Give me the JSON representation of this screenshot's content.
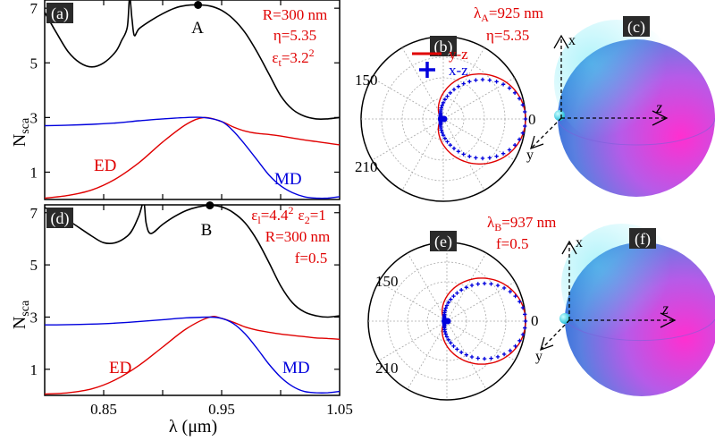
{
  "chart_data": [
    {
      "panel": "a",
      "type": "line",
      "ylabel": "N",
      "ylabel_sub": "sca",
      "xlim": [
        0.8,
        1.05
      ],
      "ylim": [
        0,
        7.3
      ],
      "yticks": [
        "1",
        "3",
        "5",
        "7"
      ],
      "annotations": {
        "params": [
          "R=300 nm",
          "η=5.35"
        ],
        "eps_base": "ε",
        "eps_sub": "t",
        "eps_value": "=3.2",
        "eps_sup": "2",
        "ed": "ED",
        "md": "MD",
        "point": "A"
      },
      "point": {
        "x": 0.93,
        "y": 7.12
      },
      "series": [
        {
          "key": "total",
          "color": "#000000",
          "x": [
            0.8,
            0.81,
            0.82,
            0.83,
            0.84,
            0.85,
            0.86,
            0.865,
            0.87,
            0.872,
            0.874,
            0.876,
            0.88,
            0.89,
            0.9,
            0.91,
            0.92,
            0.93,
            0.94,
            0.95,
            0.96,
            0.97,
            0.98,
            0.99,
            1.0,
            1.01,
            1.02,
            1.03,
            1.04,
            1.05
          ],
          "y": [
            6.85,
            6.1,
            5.4,
            5.0,
            4.85,
            5.0,
            5.4,
            5.8,
            6.3,
            7.4,
            6.6,
            6.0,
            6.25,
            6.55,
            6.8,
            7.0,
            7.1,
            7.12,
            7.08,
            6.92,
            6.6,
            6.1,
            5.4,
            4.6,
            3.8,
            3.3,
            3.05,
            2.95,
            2.95,
            3.0
          ]
        },
        {
          "key": "ed",
          "color": "#e00000",
          "x": [
            0.8,
            0.82,
            0.84,
            0.86,
            0.88,
            0.9,
            0.92,
            0.935,
            0.95,
            0.96,
            0.97,
            0.98,
            0.99,
            1.0,
            1.01,
            1.02,
            1.03,
            1.04,
            1.05
          ],
          "y": [
            0.05,
            0.15,
            0.35,
            0.75,
            1.35,
            2.1,
            2.75,
            3.0,
            2.85,
            2.65,
            2.5,
            2.42,
            2.38,
            2.32,
            2.25,
            2.18,
            2.12,
            2.06,
            2.0
          ]
        },
        {
          "key": "md",
          "color": "#0000dd",
          "x": [
            0.8,
            0.82,
            0.84,
            0.86,
            0.88,
            0.9,
            0.92,
            0.935,
            0.95,
            0.96,
            0.97,
            0.98,
            0.99,
            1.0,
            1.01,
            1.02,
            1.03,
            1.04,
            1.05
          ],
          "y": [
            2.7,
            2.72,
            2.75,
            2.8,
            2.88,
            2.95,
            3.0,
            3.0,
            2.85,
            2.5,
            2.0,
            1.45,
            0.9,
            0.5,
            0.25,
            0.1,
            0.05,
            0.05,
            0.1
          ]
        }
      ]
    },
    {
      "panel": "d",
      "type": "line",
      "ylabel": "N",
      "ylabel_sub": "sca",
      "xlabel": "λ (μm)",
      "xlim": [
        0.8,
        1.05
      ],
      "ylim": [
        0,
        7.3
      ],
      "xticks": [
        "0.85",
        "0.95",
        "1.05"
      ],
      "yticks": [
        "1",
        "3",
        "5",
        "7"
      ],
      "annotations": {
        "e1_base": "ε",
        "e1_sub": "l",
        "e1_value": "=4.4",
        "e1_sup": "2",
        "e2_base": "ε",
        "e2_sub": "2",
        "e2_value": "=1",
        "params": [
          "R=300 nm",
          "f=0.5"
        ],
        "ed": "ED",
        "md": "MD",
        "point": "B"
      },
      "point": {
        "x": 0.94,
        "y": 7.28
      },
      "series": [
        {
          "key": "total",
          "color": "#000000",
          "x": [
            0.8,
            0.82,
            0.84,
            0.85,
            0.86,
            0.87,
            0.875,
            0.88,
            0.884,
            0.886,
            0.89,
            0.9,
            0.91,
            0.92,
            0.93,
            0.94,
            0.95,
            0.96,
            0.97,
            0.98,
            0.99,
            1.0,
            1.01,
            1.02,
            1.03,
            1.04,
            1.05
          ],
          "y": [
            7.2,
            6.7,
            6.1,
            5.85,
            5.85,
            6.1,
            6.4,
            6.9,
            7.4,
            6.6,
            6.2,
            6.55,
            6.85,
            7.08,
            7.22,
            7.28,
            7.22,
            7.0,
            6.6,
            5.95,
            5.1,
            4.2,
            3.55,
            3.2,
            3.05,
            3.0,
            3.05
          ]
        },
        {
          "key": "ed",
          "color": "#e00000",
          "x": [
            0.8,
            0.82,
            0.84,
            0.86,
            0.88,
            0.9,
            0.92,
            0.94,
            0.95,
            0.96,
            0.97,
            0.98,
            0.99,
            1.0,
            1.01,
            1.02,
            1.03,
            1.04,
            1.05
          ],
          "y": [
            0.05,
            0.1,
            0.25,
            0.6,
            1.15,
            1.85,
            2.55,
            3.0,
            2.95,
            2.8,
            2.62,
            2.5,
            2.42,
            2.35,
            2.3,
            2.25,
            2.2,
            2.18,
            2.15
          ]
        },
        {
          "key": "md",
          "color": "#0000dd",
          "x": [
            0.8,
            0.82,
            0.84,
            0.86,
            0.88,
            0.9,
            0.92,
            0.94,
            0.95,
            0.96,
            0.97,
            0.98,
            0.99,
            1.0,
            1.01,
            1.02,
            1.03,
            1.04,
            1.05
          ],
          "y": [
            2.7,
            2.71,
            2.73,
            2.77,
            2.83,
            2.9,
            2.97,
            3.0,
            2.95,
            2.75,
            2.35,
            1.8,
            1.2,
            0.7,
            0.35,
            0.15,
            0.1,
            0.1,
            0.15
          ]
        }
      ]
    },
    {
      "panel": "b",
      "type": "polar",
      "labels": {
        "150": "150",
        "210": "210",
        "0": "0"
      },
      "header_base": "λ",
      "header_sub": "A",
      "header_value": "=925 nm",
      "header_line2": "η=5.35",
      "legend": [
        {
          "key": "yz",
          "label": "y-z",
          "color": "#e00000"
        },
        {
          "key": "xz",
          "label": "x-z",
          "color": "#0000dd"
        }
      ],
      "yz": {
        "forward": 1.0,
        "backward": 0.04,
        "shape": 1.8
      },
      "xz": {
        "forward": 1.0,
        "backward": 0.04,
        "shape": 2.6
      }
    },
    {
      "panel": "e",
      "type": "polar",
      "labels": {
        "150": "150",
        "210": "210",
        "0": "0"
      },
      "header_base": "λ",
      "header_sub": "B",
      "header_value": "=937 nm",
      "header_line2": "f=0.5",
      "yz": {
        "forward": 1.0,
        "backward": 0.04,
        "shape": 1.8
      },
      "xz": {
        "forward": 1.0,
        "backward": 0.04,
        "shape": 2.6
      }
    },
    {
      "panel": "c",
      "type": "diagram",
      "axes": {
        "x": "x",
        "y": "y",
        "z": "z"
      }
    },
    {
      "panel": "f",
      "type": "diagram",
      "axes": {
        "x": "x",
        "y": "y",
        "z": "z"
      }
    }
  ],
  "panel_labels": {
    "a": "(a)",
    "b": "(b)",
    "c": "(c)",
    "d": "(d)",
    "e": "(e)",
    "f": "(f)"
  },
  "colors": {
    "total": "#000000",
    "ed": "#e00000",
    "md": "#0000dd",
    "annotation": "#e00000"
  }
}
